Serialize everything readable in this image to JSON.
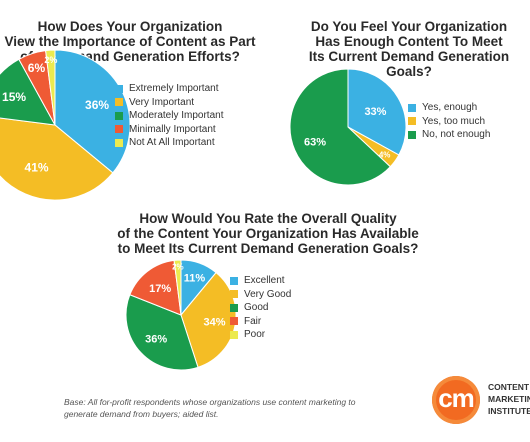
{
  "colors": {
    "blue": "#3bb1e3",
    "yellow": "#f4bd25",
    "green": "#1a9c4d",
    "red": "#ef5a35",
    "light_yellow": "#ecea4f"
  },
  "chart_data": [
    {
      "type": "pie",
      "title": "How Does Your Organization View the Importance of Content as Part of Its Demand Generation Efforts?",
      "title_lines": [
        "How Does Your Organization",
        "View the Importance of Content as Part",
        "of Its Demand Generation Efforts?"
      ],
      "categories": [
        "Extremely Important",
        "Very Important",
        "Moderately Important",
        "Minimally Important",
        "Not At All Important"
      ],
      "values": [
        36,
        41,
        15,
        6,
        2
      ],
      "labels": [
        "36%",
        "41%",
        "15%",
        "6%",
        "2%"
      ],
      "colors": [
        "#3bb1e3",
        "#f4bd25",
        "#1a9c4d",
        "#ef5a35",
        "#ecea4f"
      ],
      "legend_position": "right"
    },
    {
      "type": "pie",
      "title": "Do You Feel Your Organization Has Enough Content To Meet Its Current Demand Generation Goals?",
      "title_lines": [
        "Do You Feel Your Organization",
        "Has Enough Content To Meet",
        "Its Current Demand Generation Goals?"
      ],
      "categories": [
        "Yes, enough",
        "Yes, too much",
        "No, not enough"
      ],
      "values": [
        33,
        4,
        63
      ],
      "labels": [
        "33%",
        "4%",
        "63%"
      ],
      "colors": [
        "#3bb1e3",
        "#f4bd25",
        "#1a9c4d"
      ],
      "legend_position": "right"
    },
    {
      "type": "pie",
      "title": "How Would You Rate the Overall Quality of the Content Your Organization Has Available to Meet Its Current Demand Generation Goals?",
      "title_lines": [
        "How Would You Rate the Overall Quality",
        "of the Content Your Organization Has Available",
        "to Meet Its Current Demand Generation Goals?"
      ],
      "categories": [
        "Excellent",
        "Very Good",
        "Good",
        "Fair",
        "Poor"
      ],
      "values": [
        11,
        34,
        36,
        17,
        2
      ],
      "labels": [
        "11%",
        "34%",
        "36%",
        "17%",
        "2%"
      ],
      "colors": [
        "#3bb1e3",
        "#f4bd25",
        "#1a9c4d",
        "#ef5a35",
        "#ecea4f"
      ],
      "legend_position": "right"
    }
  ],
  "footnote": {
    "line1": "Base: All for-profit respondents whose organizations use content marketing to",
    "line2": "generate demand from buyers; aided list."
  },
  "logo": {
    "mark": "cm",
    "line1": "CONTENT",
    "line2": "MARKETING",
    "line3": "INSTITUTE"
  }
}
